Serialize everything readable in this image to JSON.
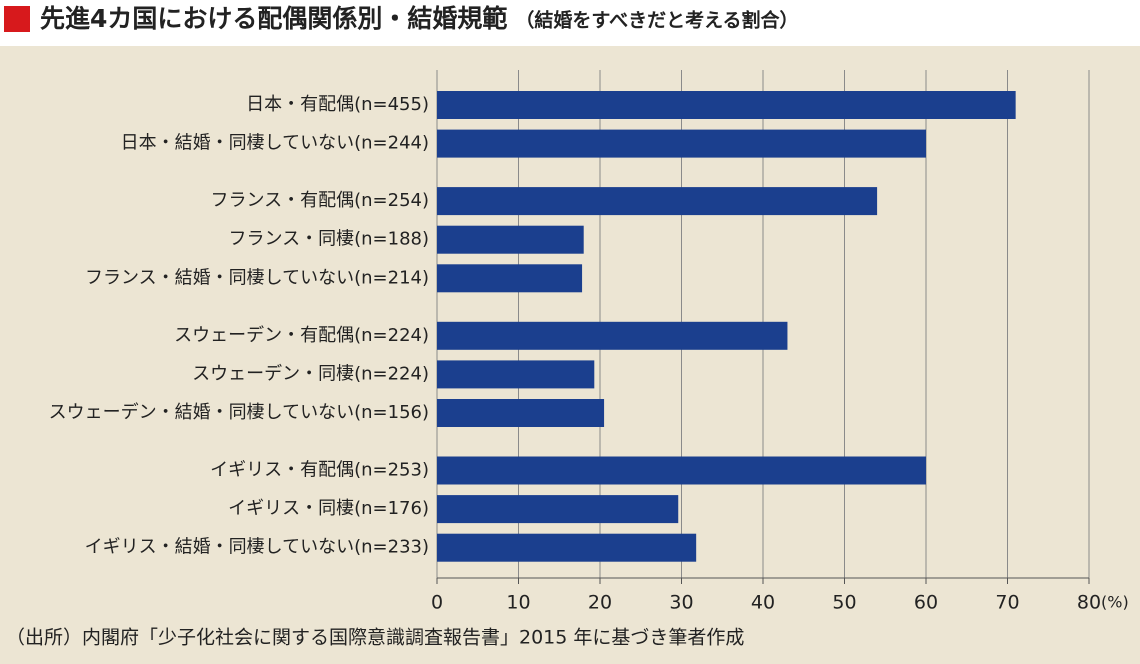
{
  "chart_data": {
    "type": "bar",
    "orientation": "horizontal",
    "title": "先進4カ国における配偶関係別・結婚規範",
    "subtitle": "（結婚をすべきだと考える割合）",
    "source": "（出所）内閣府「少子化社会に関する国際意識調査報告書」2015 年に基づき筆者作成",
    "unit": "(%)",
    "color": "#1b3f8e",
    "groups": [
      {
        "categories": [
          "日本・有配偶(n=455)",
          "日本・結婚・同棲していない(n=244)"
        ],
        "values": [
          71,
          60
        ]
      },
      {
        "categories": [
          "フランス・有配偶(n=254)",
          "フランス・同棲(n=188)",
          "フランス・結婚・同棲していない(n=214)"
        ],
        "values": [
          54,
          18,
          17.8
        ]
      },
      {
        "categories": [
          "スウェーデン・有配偶(n=224)",
          "スウェーデン・同棲(n=224)",
          "スウェーデン・結婚・同棲していない(n=156)"
        ],
        "values": [
          43,
          19.3,
          20.5
        ]
      },
      {
        "categories": [
          "イギリス・有配偶(n=253)",
          "イギリス・同棲(n=176)",
          "イギリス・結婚・同棲していない(n=233)"
        ],
        "values": [
          60,
          29.6,
          31.8
        ]
      }
    ],
    "xlim": [
      0,
      80
    ],
    "xticks": [
      0,
      10,
      20,
      30,
      40,
      50,
      60,
      70,
      80
    ],
    "grid": true
  }
}
